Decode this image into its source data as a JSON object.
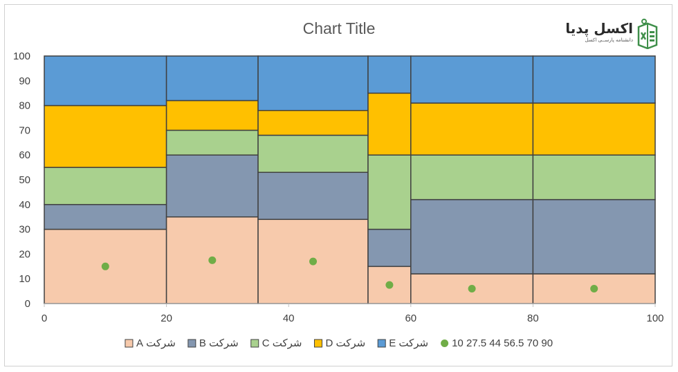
{
  "colors": {
    "A": "#F7CAAC",
    "B": "#8497B0",
    "C": "#A9D18E",
    "D": "#FFC000",
    "E": "#5B9BD5",
    "points": "#70AD47",
    "border": "#404040"
  },
  "logo": {
    "main": "اکسل پدیا",
    "sub": "دانشنامه پارســی اکسل",
    "icon": "excel-book-icon"
  },
  "chart_data": {
    "type": "mekko",
    "title": "Chart Title",
    "xlim": [
      0,
      100
    ],
    "ylim": [
      0,
      100
    ],
    "x_ticks": [
      0,
      20,
      40,
      60,
      80,
      100
    ],
    "y_ticks": [
      0,
      10,
      20,
      30,
      40,
      50,
      60,
      70,
      80,
      90,
      100
    ],
    "grid": false,
    "legend_position": "bottom",
    "columns": [
      {
        "x_start": 0,
        "x_end": 20,
        "values": {
          "A": 30,
          "B": 10,
          "C": 15,
          "D": 25,
          "E": 20
        }
      },
      {
        "x_start": 20,
        "x_end": 35,
        "values": {
          "A": 35,
          "B": 25,
          "C": 10,
          "D": 12,
          "E": 18
        }
      },
      {
        "x_start": 35,
        "x_end": 53,
        "values": {
          "A": 34,
          "B": 19,
          "C": 15,
          "D": 10,
          "E": 22
        }
      },
      {
        "x_start": 53,
        "x_end": 60,
        "values": {
          "A": 15,
          "B": 15,
          "C": 30,
          "D": 25,
          "E": 15
        }
      },
      {
        "x_start": 60,
        "x_end": 80,
        "values": {
          "A": 12,
          "B": 30,
          "C": 18,
          "D": 21,
          "E": 19
        }
      },
      {
        "x_start": 80,
        "x_end": 100,
        "values": {
          "A": 12,
          "B": 30,
          "C": 18,
          "D": 21,
          "E": 19
        }
      }
    ],
    "series": [
      {
        "key": "A",
        "name": "شرکت A"
      },
      {
        "key": "B",
        "name": "شرکت B"
      },
      {
        "key": "C",
        "name": "شرکت C"
      },
      {
        "key": "D",
        "name": "شرکت D"
      },
      {
        "key": "E",
        "name": "شرکت E"
      }
    ],
    "points_series": {
      "name": "10 27.5 44 56.5 70 90",
      "x": [
        10,
        27.5,
        44,
        56.5,
        70,
        90
      ],
      "y": [
        15,
        17.5,
        17,
        7.5,
        6,
        6
      ]
    }
  }
}
